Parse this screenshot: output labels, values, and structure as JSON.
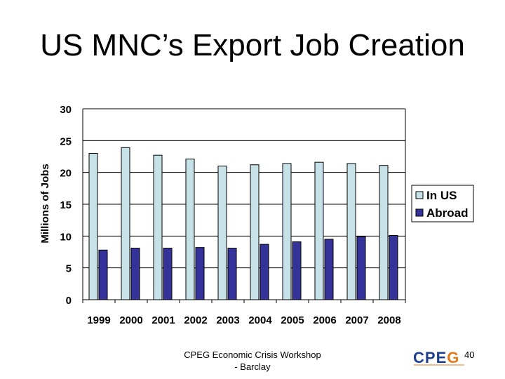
{
  "slide": {
    "title": "US MNC’s Export Job Creation",
    "footer_line1": "CPEG Economic Crisis Workshop",
    "footer_line2": "- Barclay",
    "page_number": "40"
  },
  "logo": {
    "letters": [
      "C",
      "P",
      "E",
      "G"
    ],
    "colors": [
      "#1f3f8f",
      "#1f3f8f",
      "#1f3f8f",
      "#e07a1f"
    ]
  },
  "chart_data": {
    "type": "bar",
    "title": "",
    "xlabel": "",
    "ylabel": "Millions of Jobs",
    "categories": [
      "1999",
      "2000",
      "2001",
      "2002",
      "2003",
      "2004",
      "2005",
      "2006",
      "2007",
      "2008"
    ],
    "series": [
      {
        "name": "In US",
        "color": "#c6e2e8",
        "values": [
          23.0,
          23.9,
          22.7,
          22.1,
          21.0,
          21.2,
          21.4,
          21.6,
          21.4,
          21.1
        ]
      },
      {
        "name": "Abroad",
        "color": "#333399",
        "values": [
          7.8,
          8.1,
          8.1,
          8.2,
          8.1,
          8.7,
          9.1,
          9.5,
          9.9,
          10.1
        ]
      }
    ],
    "ylim": [
      0,
      30
    ],
    "yticks": [
      "0",
      "5",
      "10",
      "15",
      "20",
      "25",
      "30"
    ],
    "grid": true,
    "legend_position": "right"
  }
}
